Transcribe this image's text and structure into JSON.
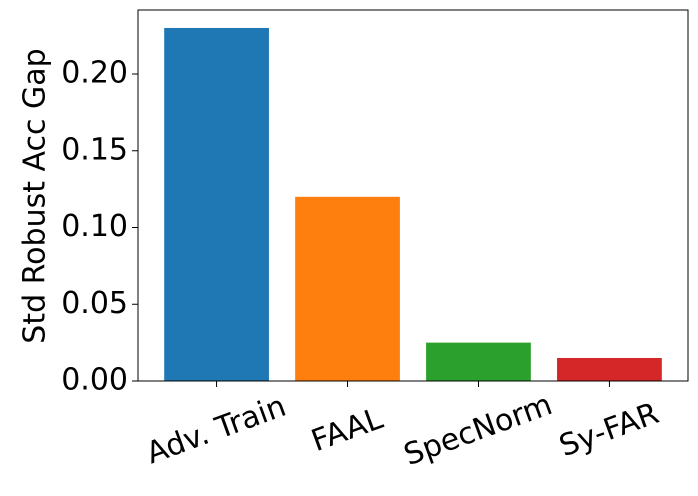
{
  "chart_data": {
    "type": "bar",
    "y_label": "Std Robust Acc Gap",
    "categories": [
      "Adv. Train",
      "FAAL",
      "SpecNorm",
      "Sy-FAR"
    ],
    "values": [
      0.23,
      0.12,
      0.025,
      0.015
    ],
    "colors": [
      "#1f77b4",
      "#ff7f0e",
      "#2ca02c",
      "#d62728"
    ],
    "ylim": [
      0,
      0.2417
    ],
    "yticks": [
      {
        "value": 0,
        "label": "0.00"
      },
      {
        "value": 0.05,
        "label": "0.05"
      },
      {
        "value": 0.1,
        "label": "0.10"
      },
      {
        "value": 0.15,
        "label": "0.15"
      },
      {
        "value": 0.2,
        "label": "0.20"
      }
    ],
    "grid": false
  }
}
